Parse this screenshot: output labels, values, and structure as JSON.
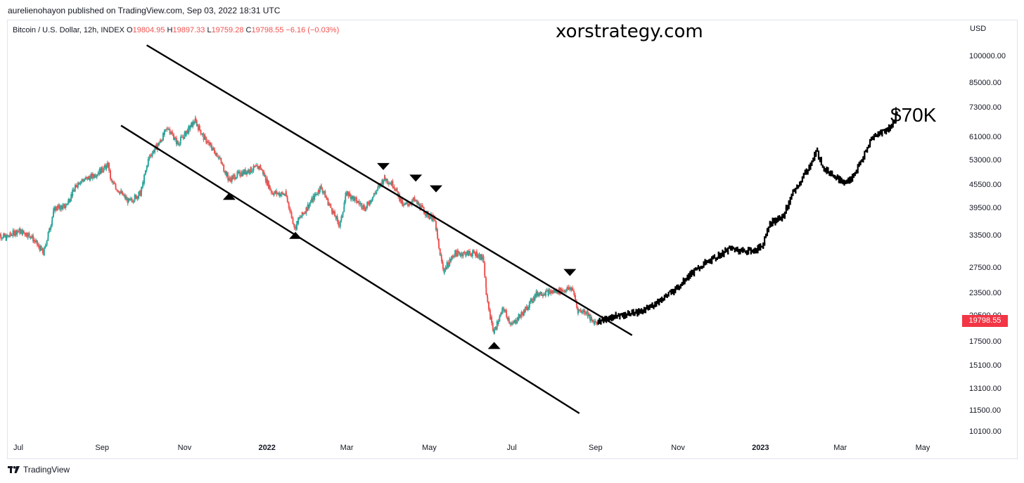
{
  "publisher": "aurelienohayon published on TradingView.com, Sep 03, 2022 18:31 UTC",
  "legend": {
    "symbol": "Bitcoin / U.S. Dollar, 12h, INDEX",
    "open_label": "O",
    "open": "19804.95",
    "high_label": "H",
    "high": "19897.33",
    "low_label": "L",
    "low": "19759.28",
    "close_label": "C",
    "close": "19798.55",
    "change": "−6.16 (−0.03%)"
  },
  "watermark": "xorstrategy.com",
  "target_label": "$70K",
  "currency": "USD",
  "last_price": "19798.55",
  "brand": "TradingView",
  "colors": {
    "up": "#26a69a",
    "down": "#ef5350",
    "projection": "#000000",
    "price_tag": "#f23645",
    "channel": "#000000"
  },
  "chart_data": {
    "type": "line",
    "scale": "log",
    "ylim": [
      9400,
      110000
    ],
    "y_ticks": [
      "100000.00",
      "85000.00",
      "73000.00",
      "61000.00",
      "53000.00",
      "45500.00",
      "39500.00",
      "33500.00",
      "27500.00",
      "23500.00",
      "20500.00",
      "17500.00",
      "15100.00",
      "13100.00",
      "11500.00",
      "10100.00"
    ],
    "x_ticks": [
      {
        "label": "Jul",
        "date": "2021-07-01"
      },
      {
        "label": "Sep",
        "date": "2021-09-01"
      },
      {
        "label": "Nov",
        "date": "2021-11-01"
      },
      {
        "label": "2022",
        "date": "2022-01-01",
        "bold": true
      },
      {
        "label": "Mar",
        "date": "2022-03-01"
      },
      {
        "label": "May",
        "date": "2022-05-01"
      },
      {
        "label": "Jul",
        "date": "2022-07-01"
      },
      {
        "label": "Sep",
        "date": "2022-09-01"
      },
      {
        "label": "Nov",
        "date": "2022-11-01"
      },
      {
        "label": "2023",
        "date": "2023-01-01",
        "bold": true
      },
      {
        "label": "Mar",
        "date": "2023-03-01"
      },
      {
        "label": "May",
        "date": "2023-05-01"
      }
    ],
    "series": [
      {
        "kind": "historical",
        "points": [
          [
            "2021-06-15",
            34000
          ],
          [
            "2021-06-22",
            33000
          ],
          [
            "2021-07-01",
            34500
          ],
          [
            "2021-07-10",
            33500
          ],
          [
            "2021-07-20",
            30000
          ],
          [
            "2021-07-28",
            39500
          ],
          [
            "2021-08-05",
            40000
          ],
          [
            "2021-08-15",
            46500
          ],
          [
            "2021-08-25",
            48000
          ],
          [
            "2021-09-06",
            51500
          ],
          [
            "2021-09-08",
            46500
          ],
          [
            "2021-09-21",
            41000
          ],
          [
            "2021-09-30",
            43500
          ],
          [
            "2021-10-06",
            54000
          ],
          [
            "2021-10-15",
            60000
          ],
          [
            "2021-10-20",
            65000
          ],
          [
            "2021-10-27",
            58500
          ],
          [
            "2021-11-09",
            67500
          ],
          [
            "2021-11-16",
            60500
          ],
          [
            "2021-11-26",
            54500
          ],
          [
            "2021-12-04",
            47000
          ],
          [
            "2021-12-10",
            48500
          ],
          [
            "2021-12-27",
            51000
          ],
          [
            "2022-01-05",
            43500
          ],
          [
            "2022-01-15",
            43000
          ],
          [
            "2022-01-22",
            35000
          ],
          [
            "2022-01-24",
            36500
          ],
          [
            "2022-02-10",
            45000
          ],
          [
            "2022-02-24",
            35500
          ],
          [
            "2022-03-01",
            43500
          ],
          [
            "2022-03-15",
            39500
          ],
          [
            "2022-03-29",
            47500
          ],
          [
            "2022-04-05",
            45500
          ],
          [
            "2022-04-12",
            40000
          ],
          [
            "2022-04-20",
            41500
          ],
          [
            "2022-04-30",
            38000
          ],
          [
            "2022-05-05",
            37000
          ],
          [
            "2022-05-09",
            30000
          ],
          [
            "2022-05-12",
            27000
          ],
          [
            "2022-05-20",
            30000
          ],
          [
            "2022-06-05",
            30000
          ],
          [
            "2022-06-10",
            29000
          ],
          [
            "2022-06-13",
            22500
          ],
          [
            "2022-06-18",
            18500
          ],
          [
            "2022-06-25",
            21500
          ],
          [
            "2022-07-01",
            19300
          ],
          [
            "2022-07-10",
            21000
          ],
          [
            "2022-07-20",
            23500
          ],
          [
            "2022-07-30",
            23700
          ],
          [
            "2022-08-10",
            24000
          ],
          [
            "2022-08-15",
            24300
          ],
          [
            "2022-08-19",
            21200
          ],
          [
            "2022-08-26",
            21000
          ],
          [
            "2022-08-29",
            19800
          ],
          [
            "2022-09-03",
            19800
          ]
        ]
      },
      {
        "kind": "projection",
        "points": [
          [
            "2022-09-03",
            19800
          ],
          [
            "2022-09-15",
            20400
          ],
          [
            "2022-09-28",
            20800
          ],
          [
            "2022-10-08",
            21200
          ],
          [
            "2022-10-20",
            22700
          ],
          [
            "2022-10-30",
            24000
          ],
          [
            "2022-11-08",
            26000
          ],
          [
            "2022-11-20",
            28000
          ],
          [
            "2022-12-01",
            29500
          ],
          [
            "2022-12-10",
            31000
          ],
          [
            "2022-12-18",
            30500
          ],
          [
            "2022-12-28",
            30500
          ],
          [
            "2023-01-03",
            31500
          ],
          [
            "2023-01-08",
            36000
          ],
          [
            "2023-01-18",
            37500
          ],
          [
            "2023-01-25",
            43000
          ],
          [
            "2023-02-02",
            48000
          ],
          [
            "2023-02-08",
            52000
          ],
          [
            "2023-02-12",
            56000
          ],
          [
            "2023-02-18",
            50000
          ],
          [
            "2023-02-25",
            48500
          ],
          [
            "2023-03-04",
            46000
          ],
          [
            "2023-03-10",
            47500
          ],
          [
            "2023-03-18",
            53500
          ],
          [
            "2023-03-25",
            61000
          ],
          [
            "2023-04-01",
            63000
          ],
          [
            "2023-04-08",
            65000
          ],
          [
            "2023-04-12",
            70000
          ]
        ]
      }
    ],
    "channel_lines": [
      [
        [
          "2021-10-04",
          107000
        ],
        [
          "2022-09-28",
          18200
        ]
      ],
      [
        [
          "2021-09-15",
          65500
        ],
        [
          "2022-08-20",
          11300
        ]
      ]
    ],
    "markers": [
      {
        "date": "2021-12-04",
        "price": 42500,
        "dir": "up"
      },
      {
        "date": "2022-01-22",
        "price": 33500,
        "dir": "up"
      },
      {
        "date": "2022-03-28",
        "price": 51000,
        "dir": "down"
      },
      {
        "date": "2022-04-21",
        "price": 47500,
        "dir": "down"
      },
      {
        "date": "2022-05-06",
        "price": 44500,
        "dir": "down"
      },
      {
        "date": "2022-06-18",
        "price": 17100,
        "dir": "up"
      },
      {
        "date": "2022-08-13",
        "price": 26700,
        "dir": "down"
      }
    ]
  }
}
